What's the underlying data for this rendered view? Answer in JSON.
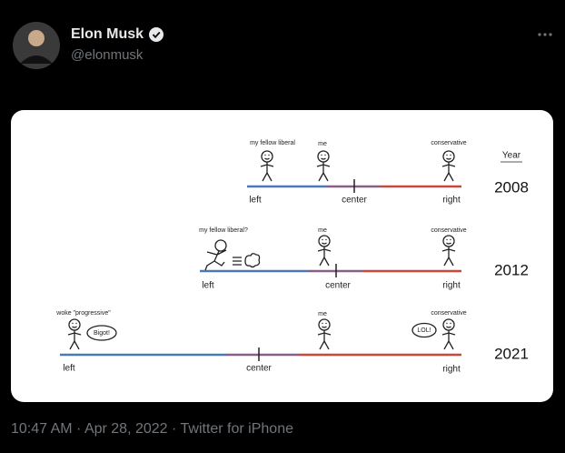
{
  "header": {
    "name": "Elon Musk",
    "handle": "@elonmusk"
  },
  "image": {
    "year_header": "Year",
    "rows": [
      {
        "year": "2008",
        "left": "left",
        "center": "center",
        "right": "right",
        "figures": [
          "my fellow liberal",
          "me",
          "conservative"
        ]
      },
      {
        "year": "2012",
        "left": "left",
        "center": "center",
        "right": "right",
        "figures": [
          "my fellow liberal?",
          "me",
          "conservative"
        ]
      },
      {
        "year": "2021",
        "left": "left",
        "center": "center",
        "right": "right",
        "figures": [
          "woke \"progressive\"",
          "me",
          "conservative"
        ],
        "bubbles": [
          "Bigot!",
          "LOL!"
        ]
      }
    ]
  },
  "footer": {
    "meta": "10:47 AM · Apr 28, 2022 · Twitter for iPhone"
  }
}
